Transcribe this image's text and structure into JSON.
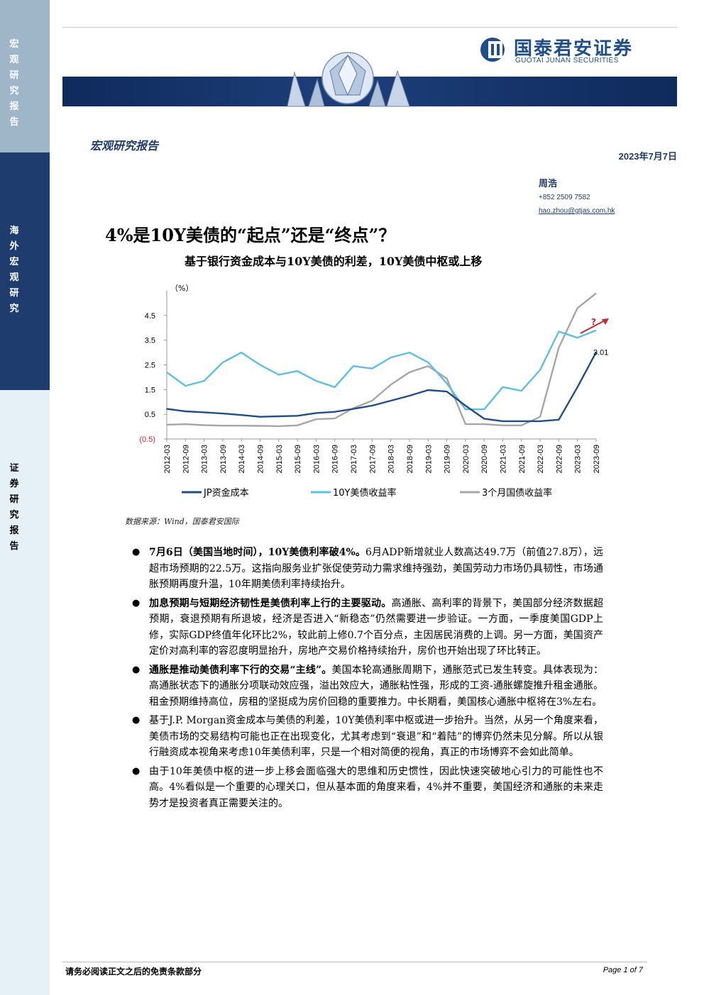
{
  "sidebar": [
    {
      "label": "宏观研究报告"
    },
    {
      "label": "海外宏观研究"
    },
    {
      "label": "证券研究报告"
    }
  ],
  "brand": {
    "name_cn": "国泰君安证券",
    "name_en": "GUOTAI JUNAN SECURITIES"
  },
  "colors": {
    "navy": "#1f3c6e",
    "brand_blue": "#1f4e8c",
    "series_dark": "#1f4e8c",
    "series_light": "#5bc0e6",
    "series_gray": "#a6a6a6",
    "arrow_red": "#d0232a"
  },
  "header": {
    "report_type": "宏观研究报告",
    "date": "2023年7月7日"
  },
  "author": {
    "name": "周浩",
    "phone": "+852 2509 7582",
    "email": "hao.zhou@gtjas.com.hk"
  },
  "title": "4%是10Y美债的“起点”还是“终点”？",
  "chart_title": "基于银行资金成本与10Y美债的利差，10Y美债中枢或上移",
  "chart_data": {
    "type": "line",
    "title": "基于银行资金成本与10Y美债的利差，10Y美债中枢或上移",
    "ylabel": "（%）",
    "ylim": [
      -0.5,
      5.5
    ],
    "ytick_labels": [
      "(0.5)",
      "0.5",
      "1.5",
      "2.5",
      "3.5",
      "4.5"
    ],
    "yticks": [
      -0.5,
      0.5,
      1.5,
      2.5,
      3.5,
      4.5
    ],
    "x": [
      "2012-03",
      "2012-09",
      "2013-03",
      "2013-09",
      "2014-03",
      "2014-09",
      "2015-03",
      "2015-09",
      "2016-03",
      "2016-09",
      "2017-03",
      "2017-09",
      "2018-03",
      "2018-09",
      "2019-03",
      "2019-09",
      "2020-03",
      "2020-09",
      "2021-03",
      "2021-09",
      "2022-03",
      "2022-09",
      "2023-03",
      "2023-09"
    ],
    "grid": false,
    "legend": "bottom",
    "annotations": [
      "3.01",
      "?"
    ],
    "series": [
      {
        "name": "JP资金成本",
        "values": [
          0.72,
          0.62,
          0.58,
          0.53,
          0.47,
          0.4,
          0.42,
          0.44,
          0.55,
          0.6,
          0.72,
          0.85,
          1.05,
          1.25,
          1.48,
          1.42,
          0.85,
          0.32,
          0.22,
          0.22,
          0.22,
          0.28,
          1.6,
          3.01
        ]
      },
      {
        "name": "10Y美债收益率",
        "values": [
          2.2,
          1.65,
          1.85,
          2.6,
          3.0,
          2.5,
          2.1,
          2.25,
          1.85,
          1.6,
          2.45,
          2.35,
          2.8,
          3.0,
          2.6,
          1.75,
          0.7,
          0.7,
          1.6,
          1.45,
          2.3,
          3.85,
          3.6,
          3.9
        ]
      },
      {
        "name": "3个月国债收益率",
        "values": [
          0.08,
          0.1,
          0.06,
          0.04,
          0.04,
          0.03,
          0.02,
          0.05,
          0.3,
          0.33,
          0.75,
          1.05,
          1.7,
          2.2,
          2.45,
          1.95,
          0.1,
          0.1,
          0.05,
          0.05,
          0.4,
          3.2,
          4.8,
          5.4
        ]
      }
    ]
  },
  "source": "数据来源：Wind，国泰君安国际",
  "bullets": [
    {
      "lead": "7月6日（美国当地时间），10Y美债利率破4%。",
      "text": "6月ADP新增就业人数高达49.7万（前值27.8万），远超市场预期的22.5万。这指向服务业扩张促使劳动力需求维持强劲，美国劳动力市场仍具韧性，市场通胀预期再度升温，10年期美债利率持续抬升。"
    },
    {
      "lead": "加息预期与短期经济韧性是美债利率上行的主要驱动。",
      "text": "高通胀、高利率的背景下，美国部分经济数据超预期，衰退预期有所退坡，经济是否进入“新稳态”仍然需要进一步验证。一方面，一季度美国GDP上修，实际GDP终值年化环比2%，较此前上修0.7个百分点，主因居民消费的上调。另一方面，美国资产定价对高利率的容忍度明显抬升，房地产交易价格持续抬升，房价也开始出现了环比转正。"
    },
    {
      "lead": "通胀是推动美债利率下行的交易“主线”。",
      "text": "美国本轮高通胀周期下，通胀范式已发生转变。具体表现为：高通胀状态下的通胀分项联动效应强，溢出效应大，通胀粘性强，形成的工资-通胀螺旋推升租金通胀。租金预期维持高位，房租的坚挺成为房价回稳的重要推力。中长期看，美国核心通胀中枢将在3%左右。"
    },
    {
      "lead": "",
      "text": "基于J.P. Morgan资金成本与美债的利差，10Y美债利率中枢或进一步抬升。当然，从另一个角度来看，美债市场的交易结构可能也正在出现变化，尤其考虑到“衰退”和“着陆”的博弈仍然未见分解。所以从银行融资成本视角来考虑10年美债利率，只是一个相对简便的视角，真正的市场博弈不会如此简单。"
    },
    {
      "lead": "",
      "text": "由于10年美债中枢的进一步上移会面临强大的思维和历史惯性，因此快速突破地心引力的可能性也不高。4%看似是一个重要的心理关口，但从基本面的角度来看，4%并不重要，美国经济和通胀的未来走势才是投资者真正需要关注的。"
    }
  ],
  "footer": {
    "disclaimer": "请务必阅读正文之后的免责条款部分",
    "page": "Page 1 of 7"
  }
}
